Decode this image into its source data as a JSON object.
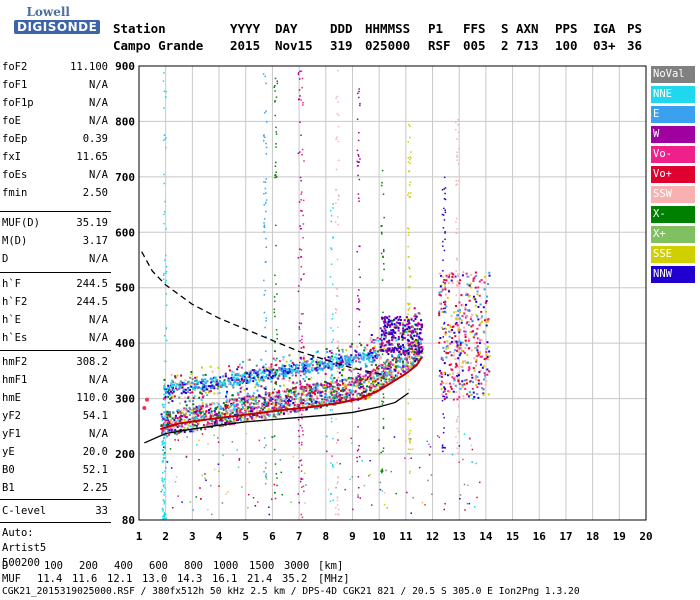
{
  "logo": {
    "line1": "Lowell",
    "line2": "DIGISONDE"
  },
  "header": {
    "row1": [
      "Station",
      "YYYY",
      "DAY",
      "DDD",
      "HHMMSS",
      "P1",
      "FFS",
      "S",
      "AXN",
      "PPS",
      "IGA",
      "PS"
    ],
    "row2": [
      "Campo Grande",
      "2015",
      "Nov15",
      "319",
      "025000",
      "RSF",
      "005",
      "2",
      "713",
      "100",
      "03+",
      "36"
    ]
  },
  "params": [
    {
      "name": "foF2",
      "value": "11.100"
    },
    {
      "name": "foF1",
      "value": "N/A"
    },
    {
      "name": "foF1p",
      "value": "N/A"
    },
    {
      "name": "foE",
      "value": "N/A"
    },
    {
      "name": "foEp",
      "value": "0.39"
    },
    {
      "name": "fxI",
      "value": "11.65"
    },
    {
      "name": "foEs",
      "value": "N/A"
    },
    {
      "name": "fmin",
      "value": "2.50"
    },
    {
      "name": "MUF(D)",
      "value": "35.19"
    },
    {
      "name": "M(D)",
      "value": "3.17"
    },
    {
      "name": "D",
      "value": "N/A"
    },
    {
      "name": "h`F",
      "value": "244.5"
    },
    {
      "name": "h`F2",
      "value": "244.5"
    },
    {
      "name": "h`E",
      "value": "N/A"
    },
    {
      "name": "h`Es",
      "value": "N/A"
    },
    {
      "name": "hmF2",
      "value": "308.2"
    },
    {
      "name": "hmF1",
      "value": "N/A"
    },
    {
      "name": "hmE",
      "value": "110.0"
    },
    {
      "name": "yF2",
      "value": "54.1"
    },
    {
      "name": "yF1",
      "value": "N/A"
    },
    {
      "name": "yE",
      "value": "20.0"
    },
    {
      "name": "B0",
      "value": "52.1"
    },
    {
      "name": "B1",
      "value": "2.25"
    },
    {
      "name": "C-level",
      "value": "33"
    }
  ],
  "auto": {
    "line1": "Auto:",
    "line2": "Artist5",
    "line3": "500200"
  },
  "legend": [
    {
      "label": "NoVal",
      "color": "#808080"
    },
    {
      "label": "NNE",
      "color": "#1fd8f0"
    },
    {
      "label": "E",
      "color": "#3aa0f0"
    },
    {
      "label": "W",
      "color": "#a000a0"
    },
    {
      "label": "Vo-",
      "color": "#f0208a"
    },
    {
      "label": "Vo+",
      "color": "#e00030"
    },
    {
      "label": "SSW",
      "color": "#f8b0b0"
    },
    {
      "label": "X-",
      "color": "#008000"
    },
    {
      "label": "X+",
      "color": "#80c060"
    },
    {
      "label": "SSE",
      "color": "#d0d000"
    },
    {
      "label": "NNW",
      "color": "#2000d0"
    }
  ],
  "chart_data": {
    "type": "scatter",
    "xlabel": "",
    "ylabel": "",
    "xlim": [
      1,
      20
    ],
    "ylim": [
      80,
      900
    ],
    "x_ticks": [
      1,
      2,
      3,
      4,
      5,
      6,
      7,
      8,
      9,
      10,
      11,
      12,
      13,
      14,
      15,
      16,
      17,
      18,
      19,
      20
    ],
    "y_ticks": [
      80,
      200,
      300,
      400,
      500,
      600,
      700,
      800,
      900
    ],
    "grid": true,
    "series": [
      {
        "type": "line",
        "style": "solid",
        "x": [
          1.2,
          2,
          3,
          4,
          5,
          6,
          7,
          8,
          9,
          10,
          10.6,
          11.1
        ],
        "y": [
          220,
          237,
          245,
          252,
          258,
          262,
          266,
          270,
          275,
          285,
          293,
          310
        ]
      },
      {
        "type": "line",
        "style": "dashed",
        "x": [
          1.1,
          1.5,
          2,
          3,
          4,
          5,
          6,
          7,
          8,
          9,
          10
        ],
        "y": [
          565,
          530,
          505,
          470,
          445,
          425,
          405,
          385,
          370,
          355,
          345
        ]
      },
      {
        "type": "line",
        "style": "solid",
        "color": "#c00000",
        "x": [
          1.8,
          2.5,
          3.5,
          4.5,
          5.5,
          6.5,
          7.5,
          8.5,
          9.3,
          10,
          10.5,
          11,
          11.4,
          11.6
        ],
        "y": [
          245,
          255,
          262,
          268,
          274,
          280,
          285,
          292,
          300,
          315,
          330,
          345,
          360,
          375
        ]
      },
      {
        "type": "scatter",
        "color": "#ff3050",
        "x": [
          1.2,
          1.3
        ],
        "y": [
          283,
          298
        ]
      }
    ]
  },
  "bottom": {
    "d_row": [
      "D",
      "100",
      "200",
      "400",
      "600",
      "800",
      "1000",
      "1500",
      "3000",
      "[km]"
    ],
    "muf_row": [
      "MUF",
      "11.4",
      "11.6",
      "12.1",
      "13.0",
      "14.3",
      "16.1",
      "21.4",
      "35.2",
      "[MHz]"
    ],
    "footer": "CGK21_2015319025000.RSF / 380fx512h 50 kHz 2.5 km / DPS-4D CGK21 821 / 20.5 S 305.0 E Ion2Png 1.3.20"
  }
}
